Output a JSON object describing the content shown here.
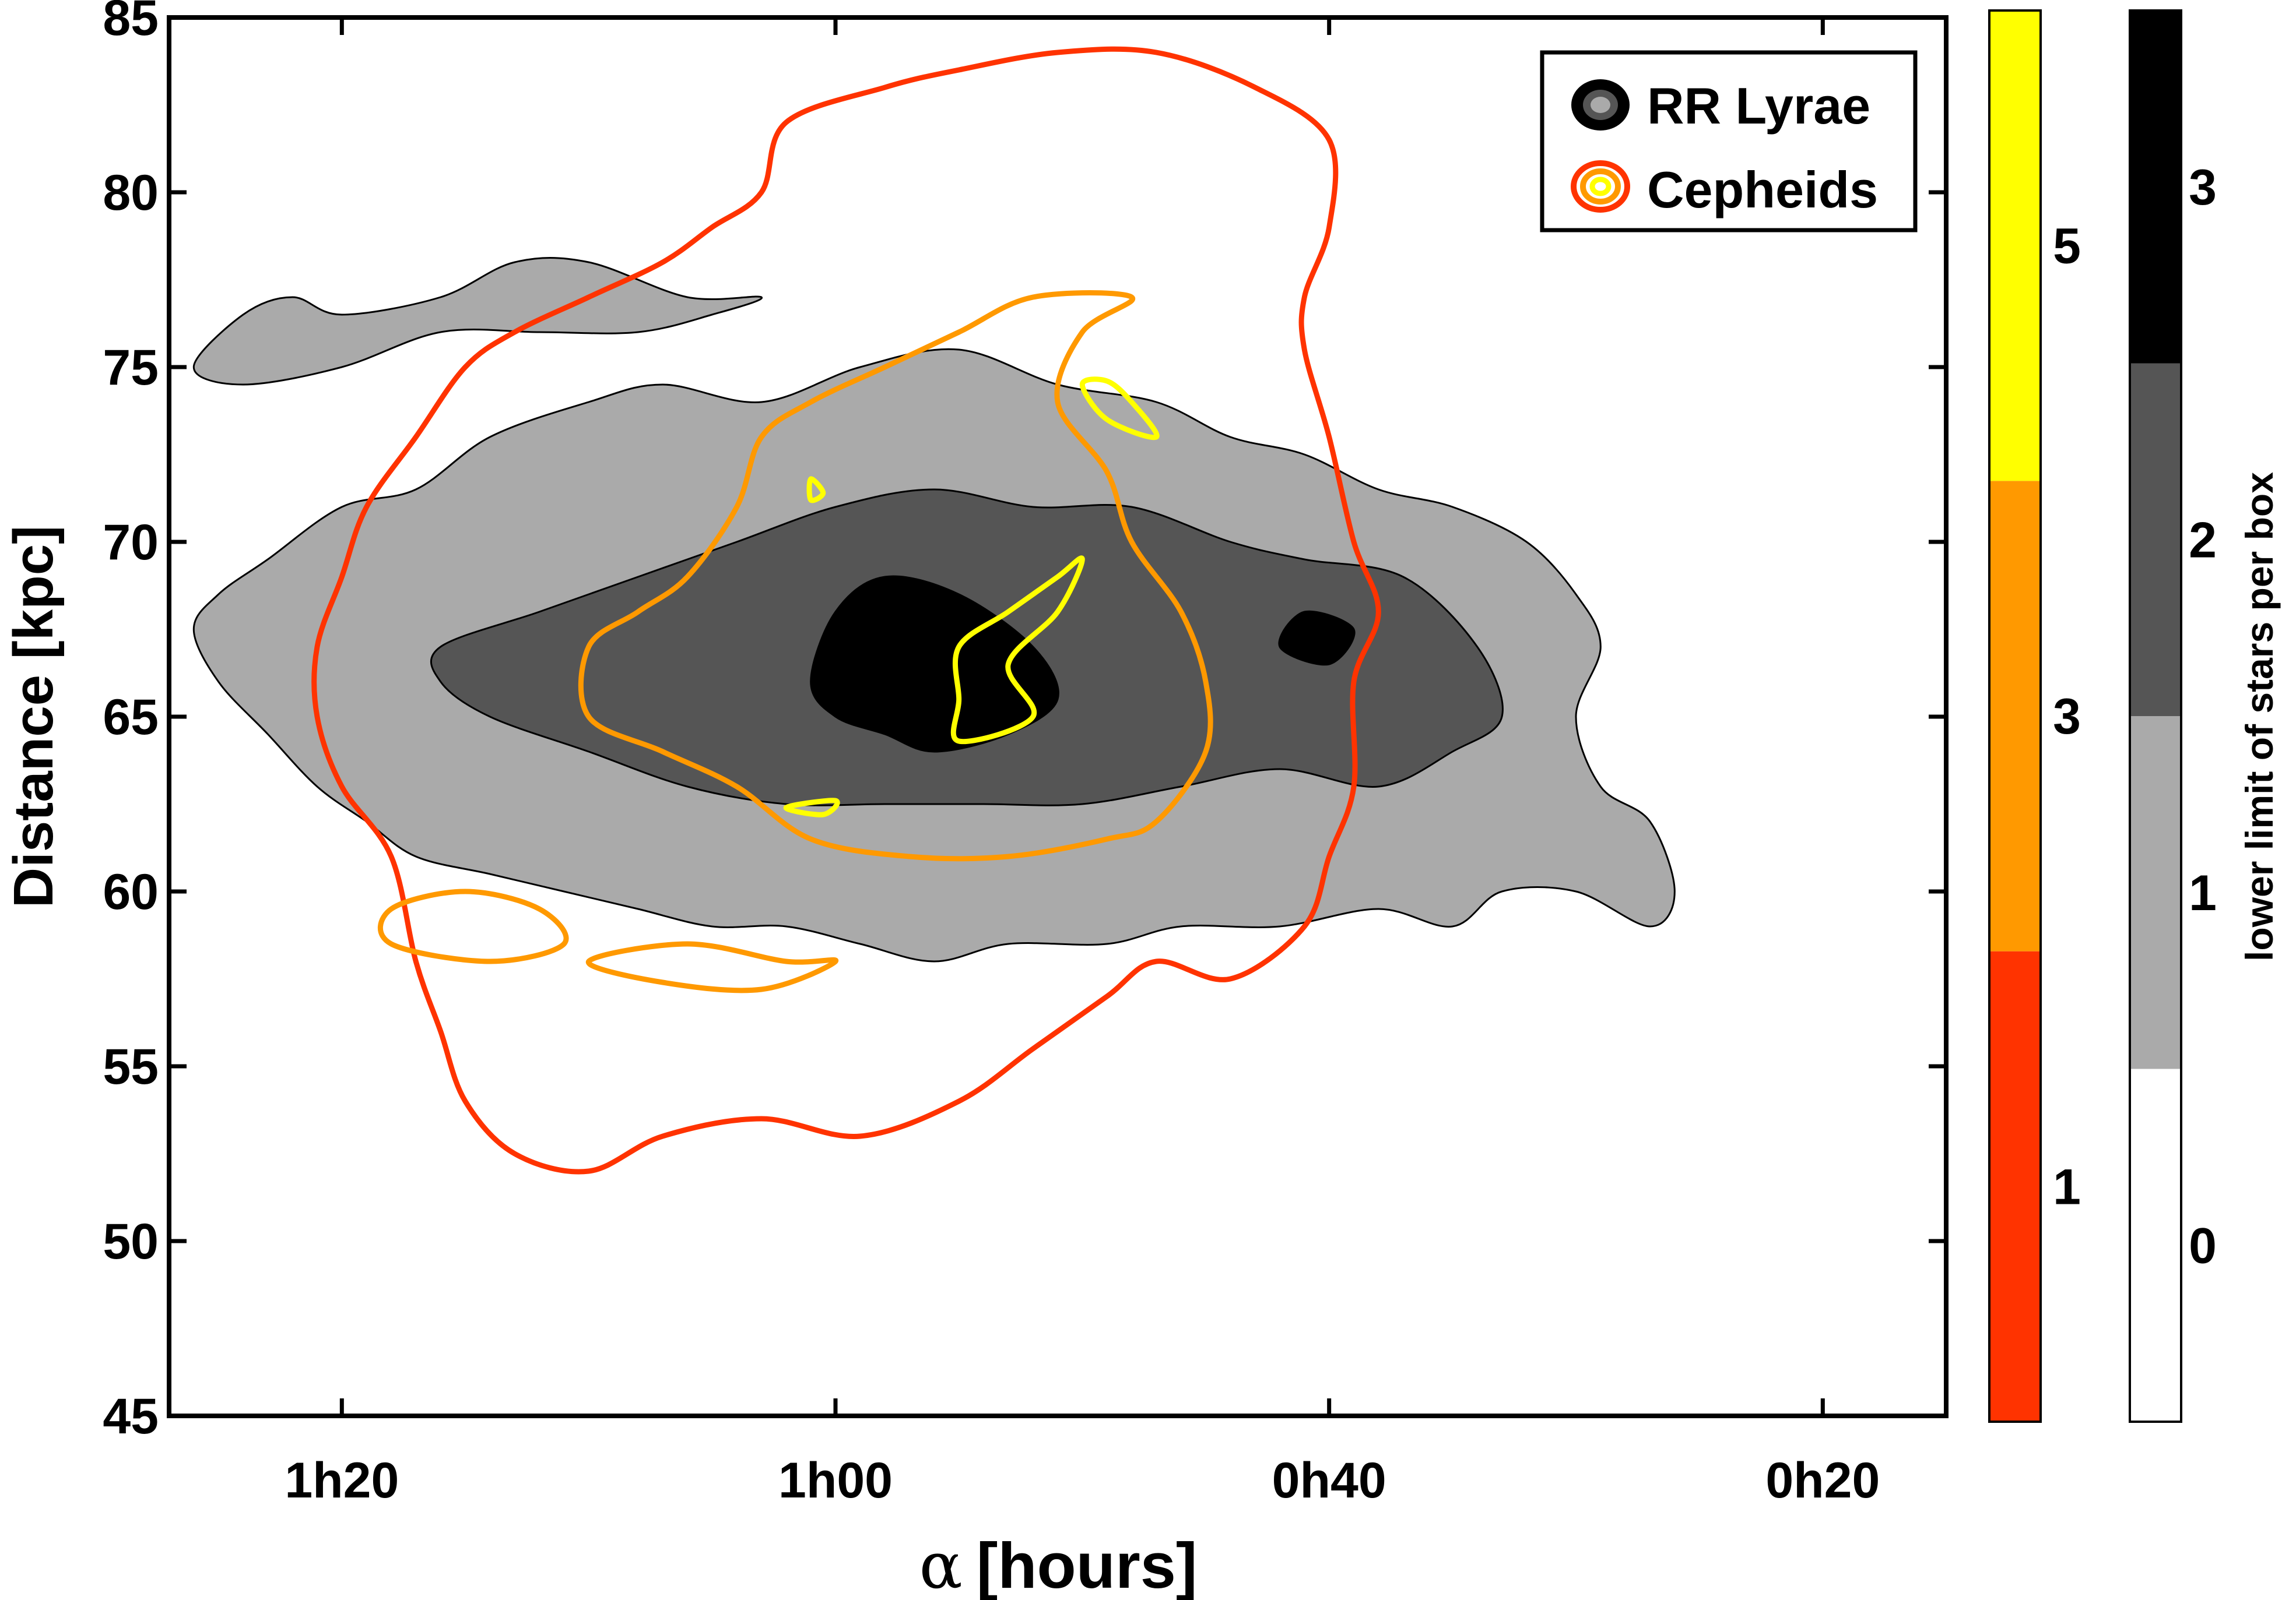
{
  "chart_data": {
    "type": "contour",
    "xlabel_symbol": "α",
    "xlabel": "[hours]",
    "ylabel": "Distance [kpc]",
    "x_reversed": true,
    "xlim_min": [
      87,
      15
    ],
    "ylim": [
      45,
      85
    ],
    "xticks": [
      {
        "value": 80,
        "label": "1h20"
      },
      {
        "value": 60,
        "label": "1h00"
      },
      {
        "value": 40,
        "label": "0h40"
      },
      {
        "value": 20,
        "label": "0h20"
      }
    ],
    "yticks": [
      45,
      50,
      55,
      60,
      65,
      70,
      75,
      80,
      85
    ],
    "legend": {
      "placement": "top-right",
      "entries": [
        {
          "label": "RR Lyrae",
          "colors": [
            "#000000",
            "#555555",
            "#aaaaaa"
          ]
        },
        {
          "label": "Cepheids",
          "colors": [
            "#ff3300",
            "#ff9900",
            "#ffff00"
          ]
        }
      ]
    },
    "colorbars": [
      {
        "name": "Cepheids",
        "levels": [
          {
            "label": "1",
            "color": "#ff3300"
          },
          {
            "label": "3",
            "color": "#ff9900"
          },
          {
            "label": "5",
            "color": "#ffff00"
          }
        ]
      },
      {
        "name": "RR Lyrae",
        "title": "lower limit of stars per box",
        "levels": [
          {
            "label": "0",
            "color": "#ffffff"
          },
          {
            "label": "1",
            "color": "#aaaaaa"
          },
          {
            "label": "2",
            "color": "#555555"
          },
          {
            "label": "3",
            "color": "#000000"
          }
        ]
      }
    ],
    "rr_lyrae_contours": [
      {
        "level": 1,
        "color": "#aaaaaa",
        "points": [
          [
            85,
            68.5
          ],
          [
            83,
            69.5
          ],
          [
            80,
            71
          ],
          [
            77,
            71.5
          ],
          [
            74,
            73
          ],
          [
            70,
            74
          ],
          [
            67,
            74.5
          ],
          [
            63,
            74
          ],
          [
            59,
            75
          ],
          [
            55,
            75.5
          ],
          [
            51,
            74.5
          ],
          [
            47,
            74
          ],
          [
            44,
            73
          ],
          [
            41,
            72.5
          ],
          [
            38,
            71.5
          ],
          [
            35,
            71
          ],
          [
            32,
            70
          ],
          [
            30,
            68.5
          ],
          [
            29,
            67
          ],
          [
            30,
            65
          ],
          [
            29,
            63
          ],
          [
            27,
            62
          ],
          [
            26,
            60
          ],
          [
            27,
            59
          ],
          [
            30,
            60
          ],
          [
            33,
            60
          ],
          [
            35,
            59
          ],
          [
            38,
            59.5
          ],
          [
            42,
            59
          ],
          [
            46,
            59
          ],
          [
            49,
            58.5
          ],
          [
            53,
            58.5
          ],
          [
            56,
            58
          ],
          [
            59,
            58.5
          ],
          [
            62,
            59
          ],
          [
            65,
            59
          ],
          [
            68,
            59.5
          ],
          [
            71,
            60
          ],
          [
            74,
            60.5
          ],
          [
            77,
            61
          ],
          [
            79,
            62
          ],
          [
            81,
            63
          ],
          [
            83,
            64.5
          ],
          [
            85,
            66
          ],
          [
            86,
            67.5
          ]
        ]
      },
      {
        "level": 1,
        "color": "#aaaaaa",
        "points": [
          [
            63,
            77
          ],
          [
            66,
            77
          ],
          [
            70,
            78
          ],
          [
            73,
            78
          ],
          [
            76,
            77
          ],
          [
            80,
            76.5
          ],
          [
            82,
            77
          ],
          [
            84,
            76.5
          ],
          [
            86,
            75
          ],
          [
            84,
            74.5
          ],
          [
            80,
            75
          ],
          [
            76,
            76
          ],
          [
            72,
            76
          ],
          [
            68,
            76
          ],
          [
            65,
            76.5
          ]
        ]
      },
      {
        "level": 2,
        "color": "#555555",
        "points": [
          [
            72,
            68
          ],
          [
            68,
            69
          ],
          [
            64,
            70
          ],
          [
            60,
            71
          ],
          [
            56,
            71.5
          ],
          [
            52,
            71
          ],
          [
            48,
            71
          ],
          [
            44,
            70
          ],
          [
            41,
            69.5
          ],
          [
            37,
            69
          ],
          [
            34,
            67
          ],
          [
            33,
            65
          ],
          [
            35,
            64
          ],
          [
            38,
            63
          ],
          [
            42,
            63.5
          ],
          [
            46,
            63
          ],
          [
            50,
            62.5
          ],
          [
            54,
            62.5
          ],
          [
            58,
            62.5
          ],
          [
            62,
            62.5
          ],
          [
            66,
            63
          ],
          [
            70,
            64
          ],
          [
            74,
            65
          ],
          [
            76,
            66
          ],
          [
            76,
            67
          ]
        ]
      },
      {
        "level": 3,
        "color": "#000000",
        "points": [
          [
            60,
            68
          ],
          [
            58,
            69
          ],
          [
            55,
            68.5
          ],
          [
            52,
            67
          ],
          [
            51,
            65.5
          ],
          [
            53,
            64.5
          ],
          [
            56,
            64
          ],
          [
            58,
            64.5
          ],
          [
            60,
            65
          ],
          [
            61,
            66
          ]
        ]
      },
      {
        "level": 3,
        "color": "#000000",
        "points": [
          [
            42,
            67
          ],
          [
            41,
            68
          ],
          [
            39,
            67.5
          ],
          [
            40,
            66.5
          ]
        ]
      }
    ],
    "cepheid_contours": [
      {
        "level": 1,
        "color": "#ff3300",
        "points": [
          [
            62,
            82
          ],
          [
            58,
            83
          ],
          [
            55,
            83.5
          ],
          [
            51,
            84
          ],
          [
            47,
            84
          ],
          [
            43,
            83
          ],
          [
            40,
            81.5
          ],
          [
            40,
            79
          ],
          [
            41,
            77
          ],
          [
            41,
            75.5
          ],
          [
            40,
            73
          ],
          [
            39,
            70
          ],
          [
            38,
            68
          ],
          [
            39,
            66
          ],
          [
            39,
            63
          ],
          [
            40,
            61
          ],
          [
            41,
            59
          ],
          [
            44,
            57.5
          ],
          [
            47,
            58
          ],
          [
            49,
            57
          ],
          [
            52,
            55.5
          ],
          [
            55,
            54
          ],
          [
            59,
            53
          ],
          [
            63,
            53.5
          ],
          [
            67,
            53
          ],
          [
            70,
            52
          ],
          [
            73,
            52.5
          ],
          [
            75,
            54
          ],
          [
            76,
            56
          ],
          [
            77,
            58
          ],
          [
            78,
            61
          ],
          [
            80,
            63
          ],
          [
            81,
            65
          ],
          [
            81,
            67
          ],
          [
            80,
            69
          ],
          [
            79,
            71
          ],
          [
            77,
            73
          ],
          [
            75,
            75
          ],
          [
            73,
            76
          ],
          [
            70,
            77
          ],
          [
            67,
            78
          ],
          [
            65,
            79
          ],
          [
            63,
            80
          ]
        ]
      },
      {
        "level": 3,
        "color": "#ff9900",
        "points": [
          [
            48,
            77
          ],
          [
            50,
            76
          ],
          [
            51,
            74
          ],
          [
            49,
            72
          ],
          [
            48,
            70
          ],
          [
            46,
            68
          ],
          [
            45,
            66
          ],
          [
            45,
            64
          ],
          [
            47,
            62
          ],
          [
            49,
            61.5
          ],
          [
            53,
            61
          ],
          [
            57,
            61
          ],
          [
            61,
            61.5
          ],
          [
            64,
            63
          ],
          [
            67,
            64
          ],
          [
            70,
            65
          ],
          [
            70,
            67
          ],
          [
            68,
            68
          ],
          [
            66,
            69
          ],
          [
            64,
            71
          ],
          [
            63,
            73
          ],
          [
            61,
            74
          ],
          [
            58,
            75
          ],
          [
            55,
            76
          ],
          [
            52,
            77
          ]
        ]
      },
      {
        "level": 3,
        "color": "#ff9900",
        "points": [
          [
            78,
            59.5
          ],
          [
            75,
            60
          ],
          [
            72,
            59.5
          ],
          [
            71,
            58.5
          ],
          [
            74,
            58
          ],
          [
            78,
            58.5
          ]
        ]
      },
      {
        "level": 3,
        "color": "#ff9900",
        "points": [
          [
            70,
            58
          ],
          [
            66,
            58.5
          ],
          [
            62,
            58
          ],
          [
            60,
            58
          ],
          [
            63,
            57.2
          ],
          [
            67,
            57.4
          ]
        ]
      },
      {
        "level": 5,
        "color": "#ffff00",
        "points": [
          [
            50,
            74.5
          ],
          [
            49,
            73.5
          ],
          [
            47,
            73
          ],
          [
            48,
            74
          ],
          [
            49,
            74.6
          ]
        ]
      },
      {
        "level": 5,
        "color": "#ffff00",
        "points": [
          [
            50,
            69.5
          ],
          [
            51,
            68
          ],
          [
            53,
            66.5
          ],
          [
            52,
            65
          ],
          [
            55,
            64.3
          ],
          [
            55,
            65.5
          ],
          [
            55,
            67
          ],
          [
            53,
            68
          ],
          [
            51,
            69
          ]
        ]
      },
      {
        "level": 5,
        "color": "#ffff00",
        "points": [
          [
            61,
            71.8
          ],
          [
            60.5,
            71.4
          ],
          [
            61,
            71.2
          ]
        ]
      },
      {
        "level": 5,
        "color": "#ffff00",
        "points": [
          [
            62,
            62.4
          ],
          [
            60,
            62.6
          ],
          [
            60.5,
            62.2
          ]
        ]
      }
    ]
  }
}
